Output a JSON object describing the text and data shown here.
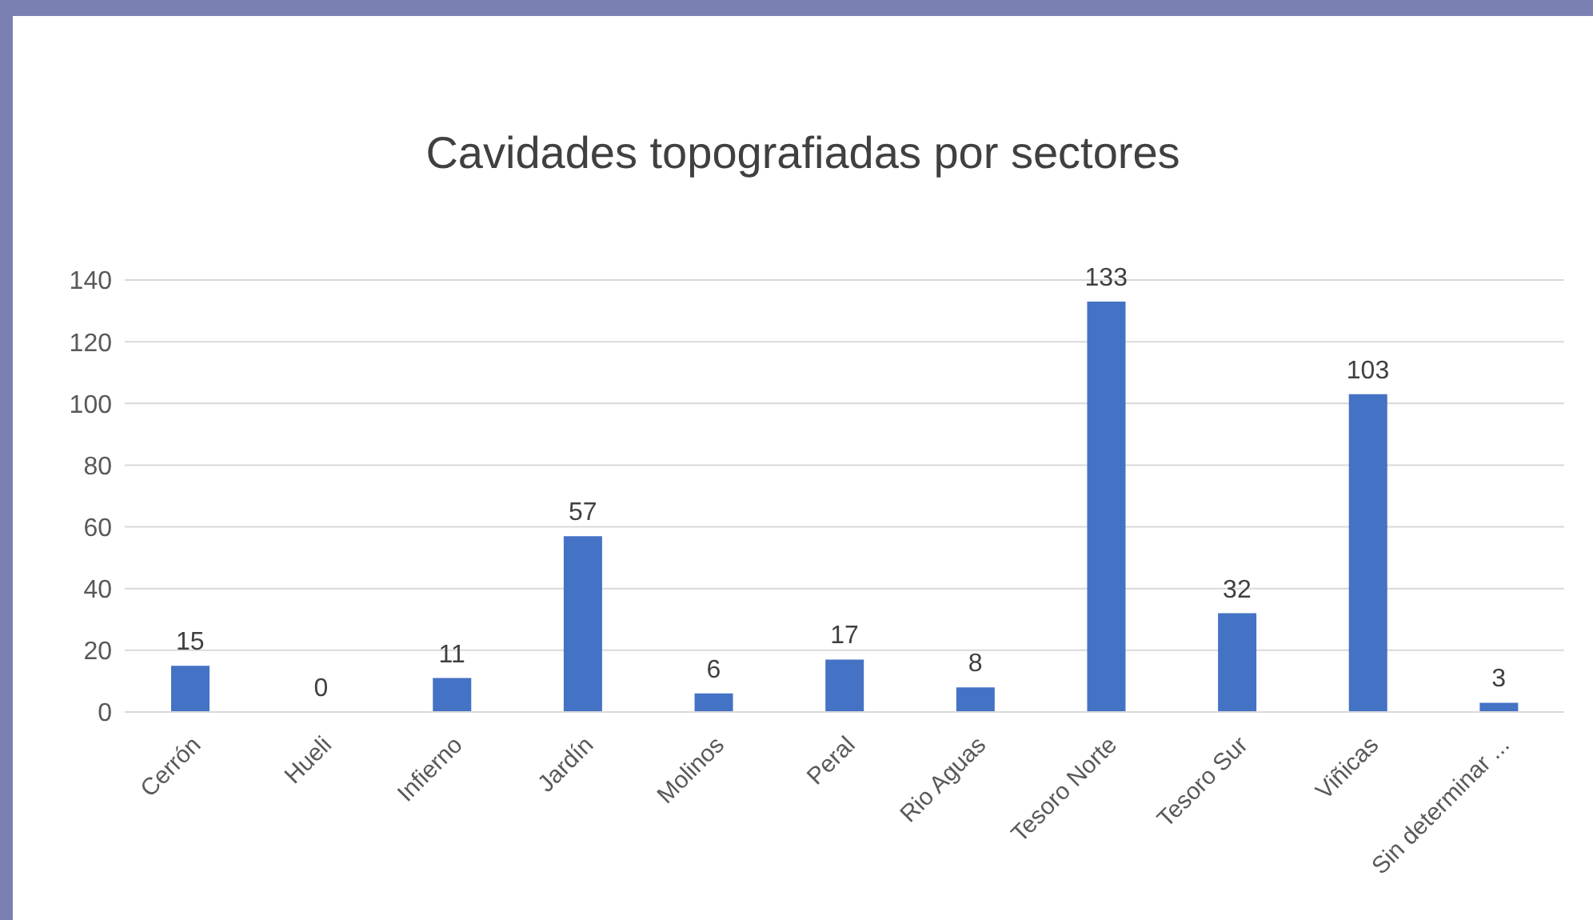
{
  "chart_data": {
    "type": "bar",
    "title": "Cavidades topografiadas por sectores",
    "categories": [
      "Cerrón",
      "Hueli",
      "Infierno",
      "Jardín",
      "Molinos",
      "Peral",
      "Rio Aguas",
      "Tesoro Norte",
      "Tesoro Sur",
      "Viñicas",
      "Sin determinar ..."
    ],
    "values": [
      15,
      0,
      11,
      57,
      6,
      17,
      8,
      133,
      32,
      103,
      3
    ],
    "color": "#4472c4",
    "ylim": [
      0,
      140
    ],
    "yticks": [
      0,
      20,
      40,
      60,
      80,
      100,
      120,
      140
    ],
    "grid": "y",
    "data_labels": true
  }
}
